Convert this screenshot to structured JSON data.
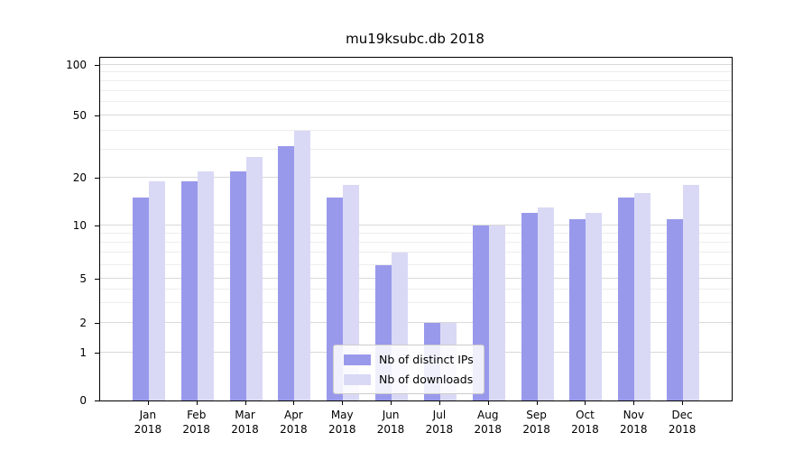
{
  "chart_data": {
    "type": "bar",
    "title": "mu19ksubc.db 2018",
    "categories": [
      "Jan",
      "Feb",
      "Mar",
      "Apr",
      "May",
      "Jun",
      "Jul",
      "Aug",
      "Sep",
      "Oct",
      "Nov",
      "Dec"
    ],
    "year_label": "2018",
    "series": [
      {
        "name": "Nb of distinct IPs",
        "color": "#9999ec",
        "values": [
          15,
          19,
          22,
          32,
          15,
          6,
          2,
          10,
          12,
          11,
          15,
          11
        ]
      },
      {
        "name": "Nb of downloads",
        "color": "#d9d9f6",
        "values": [
          19,
          22,
          27,
          40,
          18,
          7,
          2,
          10,
          13,
          12,
          16,
          18
        ]
      }
    ],
    "y_ticks": [
      0,
      1,
      2,
      5,
      10,
      20,
      50,
      100
    ],
    "y_minor_ticks": [
      3,
      4,
      6,
      7,
      8,
      9,
      30,
      40,
      60,
      70,
      80,
      90
    ],
    "ylim": [
      0,
      100
    ],
    "scale": "symlog",
    "grid": true,
    "legend_position": "lower center",
    "grid_major_color": "#d9d9d9",
    "grid_minor_color": "#ededed"
  }
}
